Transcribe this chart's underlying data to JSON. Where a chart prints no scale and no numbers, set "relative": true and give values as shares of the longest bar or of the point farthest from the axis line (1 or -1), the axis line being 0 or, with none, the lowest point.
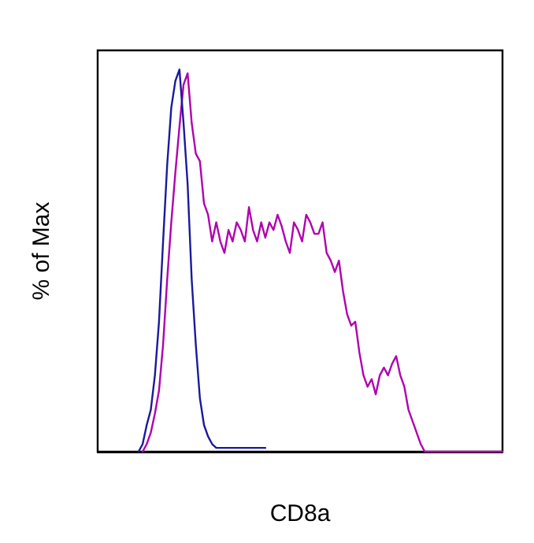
{
  "chart_data": {
    "type": "line",
    "relative": true,
    "xlabel": "CD8a",
    "ylabel": "% of Max",
    "grid": false,
    "legend": false,
    "marker": "none",
    "line_style": "solid",
    "categories": [
      null,
      null,
      null,
      null,
      null,
      null,
      null,
      null,
      null,
      null,
      null,
      null,
      null,
      null,
      null,
      null,
      null,
      null,
      null,
      null,
      null,
      null,
      null,
      null,
      null,
      null,
      null,
      null,
      null,
      null,
      null,
      null,
      null,
      null,
      null,
      null,
      null,
      null,
      null,
      null,
      null,
      null,
      null,
      null,
      null,
      null,
      null,
      null,
      null,
      null,
      null,
      null,
      null,
      null,
      null,
      null,
      null,
      null,
      null,
      null,
      null,
      null,
      null,
      null,
      null,
      null,
      null,
      null,
      null,
      null,
      null,
      null,
      null,
      null,
      null,
      null,
      null,
      null,
      null,
      null,
      null,
      null,
      null,
      null,
      null,
      null,
      null,
      null,
      null,
      null,
      null,
      null,
      null,
      null,
      null,
      null,
      null,
      null,
      null,
      null
    ],
    "series": [
      {
        "color": "#b000b0",
        "values": [
          null,
          null,
          null,
          null,
          null,
          null,
          null,
          null,
          null,
          null,
          null,
          0,
          0.02,
          0.05,
          0.1,
          0.16,
          0.28,
          0.45,
          0.6,
          0.73,
          0.85,
          0.96,
          0.99,
          0.86,
          0.78,
          0.76,
          0.65,
          0.62,
          0.55,
          0.6,
          0.55,
          0.52,
          0.58,
          0.55,
          0.6,
          0.58,
          0.55,
          0.64,
          0.58,
          0.55,
          0.6,
          0.56,
          0.6,
          0.58,
          0.62,
          0.59,
          0.55,
          0.52,
          0.6,
          0.58,
          0.55,
          0.62,
          0.6,
          0.57,
          0.57,
          0.6,
          0.52,
          0.5,
          0.47,
          0.5,
          0.42,
          0.36,
          0.33,
          0.34,
          0.26,
          0.2,
          0.17,
          0.19,
          0.15,
          0.2,
          0.22,
          0.2,
          0.23,
          0.25,
          0.2,
          0.17,
          0.11,
          0.08,
          0.05,
          0.02,
          0,
          0,
          0,
          0,
          0,
          0,
          0,
          0,
          0,
          0,
          0,
          0,
          0,
          0,
          0,
          0,
          0,
          0,
          0,
          0
        ]
      },
      {
        "color": "#1a1a9c",
        "values": [
          null,
          null,
          null,
          null,
          null,
          null,
          null,
          null,
          null,
          null,
          0,
          0.02,
          0.07,
          0.11,
          0.2,
          0.34,
          0.55,
          0.75,
          0.9,
          0.97,
          1,
          0.86,
          0.7,
          0.45,
          0.28,
          0.14,
          0.07,
          0.04,
          0.02,
          0.01,
          0.01,
          0.01,
          0.01,
          0.01,
          0.01,
          0.01,
          0.01,
          0.01,
          0.01,
          0.01,
          0.01,
          0.01,
          null,
          null,
          null,
          null,
          null,
          null,
          null,
          null,
          null,
          null,
          null,
          null,
          null,
          null,
          null,
          null,
          null,
          null,
          null,
          null,
          null,
          null,
          null,
          null,
          null,
          null,
          null,
          null,
          null,
          null,
          null,
          null,
          null,
          null,
          null,
          null,
          null,
          null,
          null,
          null,
          null,
          null,
          null,
          null,
          null,
          null,
          null,
          null,
          null,
          null,
          null,
          null,
          null,
          null,
          null,
          null,
          null,
          null
        ]
      }
    ]
  }
}
